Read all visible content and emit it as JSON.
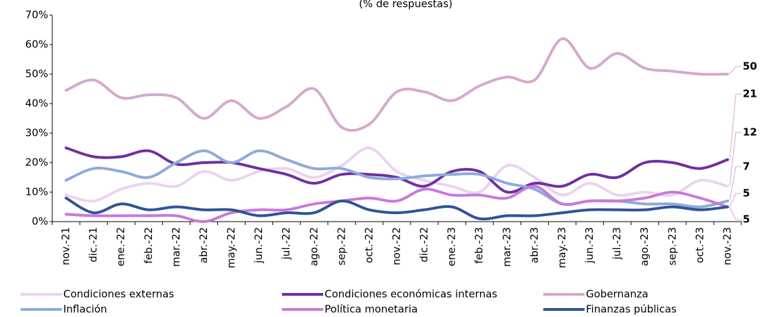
{
  "chart_data": {
    "type": "line",
    "subtitle": "(% de respuestas)",
    "categories": [
      "nov.-21",
      "dic.-21",
      "ene.-22",
      "feb.-22",
      "mar.-22",
      "abr.-22",
      "may.-22",
      "jun.-22",
      "jul.-22",
      "ago.-22",
      "sep.-22",
      "oct.-22",
      "nov.-22",
      "dic.-22",
      "ene.-23",
      "feb.-23",
      "mar.-23",
      "abr.-23",
      "may.-23",
      "jun.-23",
      "jul.-23",
      "ago.-23",
      "sep.-23",
      "oct.-23",
      "nov.-23"
    ],
    "ylim": [
      0,
      70
    ],
    "yticks": [
      {
        "value": 0,
        "label": "0%"
      },
      {
        "value": 10,
        "label": "10%"
      },
      {
        "value": 20,
        "label": "20%"
      },
      {
        "value": 30,
        "label": "30%"
      },
      {
        "value": 40,
        "label": "40%"
      },
      {
        "value": 50,
        "label": "50%"
      },
      {
        "value": 60,
        "label": "60%"
      },
      {
        "value": 70,
        "label": "70%"
      }
    ],
    "grid": false,
    "legend": "bottom",
    "series": [
      {
        "name": "Condiciones externas",
        "color": "#ebd3f0",
        "values": [
          9,
          7,
          11,
          13,
          12,
          17,
          14,
          17,
          18,
          15,
          19,
          25,
          17,
          14,
          12,
          10,
          19,
          15,
          9,
          13,
          9,
          10,
          9,
          14,
          12
        ]
      },
      {
        "name": "Condiciones económicas internas",
        "color": "#7030a0",
        "values": [
          25,
          22,
          22,
          24,
          19.5,
          20,
          20,
          18,
          16,
          13,
          16,
          16,
          15,
          12,
          17,
          17,
          10,
          13,
          12,
          16,
          15,
          20,
          20,
          18,
          21
        ]
      },
      {
        "name": "Gobernanza",
        "color": "#d5a9cd",
        "values": [
          44.5,
          48,
          42,
          43,
          42,
          35,
          41,
          35,
          39,
          45,
          32,
          33,
          44,
          44,
          41,
          46,
          49,
          48,
          62,
          52,
          57,
          52,
          51,
          50,
          50
        ]
      },
      {
        "name": "Inflación",
        "color": "#8eaadb",
        "values": [
          14,
          18,
          17,
          15,
          20,
          24,
          20,
          24,
          21,
          18,
          18,
          15,
          14.5,
          15.5,
          16,
          16,
          13,
          11,
          6,
          7,
          7,
          6,
          6,
          5,
          7
        ]
      },
      {
        "name": "Política monetaria",
        "color": "#c879dc",
        "values": [
          2.5,
          2,
          2,
          2,
          2,
          0,
          3,
          4,
          4,
          6,
          7,
          8,
          7,
          11,
          9,
          9,
          8,
          12,
          6,
          7,
          7,
          8,
          10,
          8,
          5
        ]
      },
      {
        "name": "Finanzas públicas",
        "color": "#2f5496",
        "values": [
          8,
          3,
          6,
          4,
          5,
          4,
          4,
          2,
          3,
          3,
          7,
          4,
          3,
          4,
          5,
          1,
          2,
          2,
          3,
          4,
          4,
          4,
          5,
          4,
          5
        ]
      }
    ]
  }
}
